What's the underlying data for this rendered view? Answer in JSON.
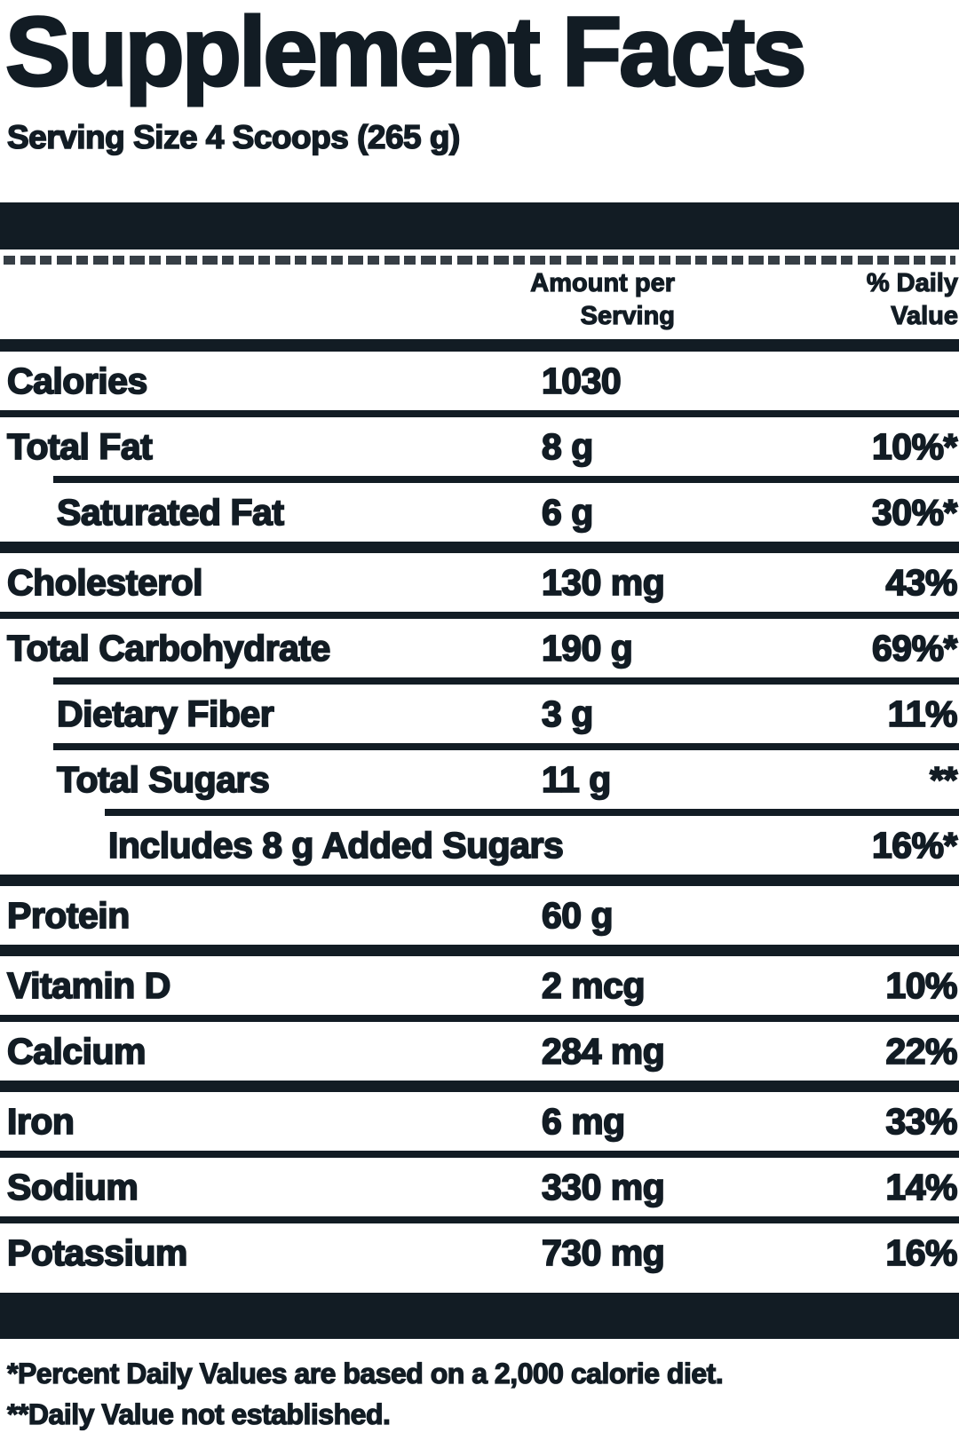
{
  "title": "Supplement Facts",
  "serving_line": "Serving Size 4 Scoops (265 g)",
  "columns": {
    "amount_header": {
      "line1": "Amount per",
      "line2": "Serving"
    },
    "dv_header": {
      "line1": "% Daily",
      "line2": "Value"
    }
  },
  "colors": {
    "ink": "#121c24",
    "background": "#ffffff"
  },
  "rows": [
    {
      "label": "Calories",
      "amount": "1030",
      "dv": "",
      "indent": 0,
      "rule": "none",
      "rule_indent": 0
    },
    {
      "label": "Total Fat",
      "amount": "8 g",
      "dv": "10%*",
      "indent": 0,
      "rule": "thin",
      "rule_indent": 0
    },
    {
      "label": "Saturated Fat",
      "amount": "6 g",
      "dv": "30%*",
      "indent": 1,
      "rule": "thin",
      "rule_indent": 1
    },
    {
      "label": "Cholesterol",
      "amount": "130 mg",
      "dv": "43%",
      "indent": 0,
      "rule": "thick",
      "rule_indent": 0
    },
    {
      "label": "Total Carbohydrate",
      "amount": "190 g",
      "dv": "69%*",
      "indent": 0,
      "rule": "thin",
      "rule_indent": 0
    },
    {
      "label": "Dietary Fiber",
      "amount": "3 g",
      "dv": "11%",
      "indent": 1,
      "rule": "thin",
      "rule_indent": 1
    },
    {
      "label": "Total Sugars",
      "amount": "11 g",
      "dv": "**",
      "indent": 1,
      "rule": "thin",
      "rule_indent": 1
    },
    {
      "label": "Includes 8 g Added Sugars",
      "amount": "",
      "dv": "16%*",
      "indent": 2,
      "rule": "thin",
      "rule_indent": 2
    },
    {
      "label": "Protein",
      "amount": "60 g",
      "dv": "",
      "indent": 0,
      "rule": "thick",
      "rule_indent": 0
    },
    {
      "label": "Vitamin D",
      "amount": "2 mcg",
      "dv": "10%",
      "indent": 0,
      "rule": "thick",
      "rule_indent": 0
    },
    {
      "label": "Calcium",
      "amount": "284 mg",
      "dv": "22%",
      "indent": 0,
      "rule": "thin",
      "rule_indent": 0
    },
    {
      "label": "Iron",
      "amount": "6 mg",
      "dv": "33%",
      "indent": 0,
      "rule": "thick",
      "rule_indent": 0
    },
    {
      "label": "Sodium",
      "amount": "330 mg",
      "dv": "14%",
      "indent": 0,
      "rule": "thin",
      "rule_indent": 0
    },
    {
      "label": "Potassium",
      "amount": "730 mg",
      "dv": "16%",
      "indent": 0,
      "rule": "thin",
      "rule_indent": 0
    }
  ],
  "footnotes": {
    "line1": "*Percent Daily Values are based on a 2,000 calorie diet.",
    "line2": "**Daily Value not established."
  }
}
